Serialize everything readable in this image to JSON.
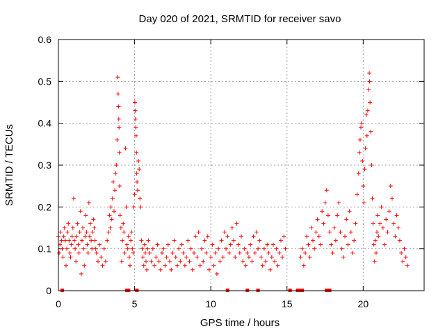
{
  "chart_data": {
    "type": "scatter",
    "title": "Day 020 of 2021, SRMTID for receiver savo",
    "xlabel": "GPS time / hours",
    "ylabel": "SRMTID / TECUs",
    "xlim": [
      0,
      24
    ],
    "ylim": [
      0,
      0.6
    ],
    "xticks": [
      0,
      5,
      10,
      15,
      20
    ],
    "xtick_labels": [
      "0",
      "5",
      "10",
      "15",
      "20"
    ],
    "yticks": [
      0,
      0.1,
      0.2,
      0.3,
      0.4,
      0.5,
      0.6
    ],
    "ytick_labels": [
      "0",
      "0.1",
      "0.2",
      "0.3",
      "0.4",
      "0.5",
      "0.6"
    ],
    "grid": true,
    "marker": "+",
    "color": "#ff0000",
    "zero_flags_x": [
      0.25,
      4.5,
      4.6,
      5.15,
      11.1,
      12.4,
      13.1,
      15.2,
      15.7,
      15.85,
      16.0,
      17.6,
      17.8
    ],
    "series": [
      {
        "name": "SRMTID",
        "points": [
          [
            0.0,
            0.13
          ],
          [
            0.05,
            0.09
          ],
          [
            0.1,
            0.11
          ],
          [
            0.15,
            0.14
          ],
          [
            0.2,
            0.12
          ],
          [
            0.25,
            0.1
          ],
          [
            0.3,
            0.08
          ],
          [
            0.35,
            0.13
          ],
          [
            0.4,
            0.15
          ],
          [
            0.45,
            0.12
          ],
          [
            0.5,
            0.06
          ],
          [
            0.55,
            0.1
          ],
          [
            0.6,
            0.14
          ],
          [
            0.65,
            0.16
          ],
          [
            0.7,
            0.12
          ],
          [
            0.75,
            0.09
          ],
          [
            0.8,
            0.08
          ],
          [
            0.85,
            0.11
          ],
          [
            0.9,
            0.13
          ],
          [
            0.95,
            0.15
          ],
          [
            1.0,
            0.22
          ],
          [
            1.05,
            0.12
          ],
          [
            1.1,
            0.1
          ],
          [
            1.15,
            0.07
          ],
          [
            1.2,
            0.13
          ],
          [
            1.25,
            0.16
          ],
          [
            1.3,
            0.11
          ],
          [
            1.35,
            0.09
          ],
          [
            1.4,
            0.14
          ],
          [
            1.45,
            0.19
          ],
          [
            1.5,
            0.04
          ],
          [
            1.55,
            0.12
          ],
          [
            1.6,
            0.15
          ],
          [
            1.65,
            0.1
          ],
          [
            1.7,
            0.06
          ],
          [
            1.75,
            0.13
          ],
          [
            1.8,
            0.18
          ],
          [
            1.85,
            0.14
          ],
          [
            1.9,
            0.11
          ],
          [
            1.95,
            0.09
          ],
          [
            2.0,
            0.21
          ],
          [
            2.05,
            0.13
          ],
          [
            2.1,
            0.16
          ],
          [
            2.15,
            0.12
          ],
          [
            2.2,
            0.1
          ],
          [
            2.25,
            0.14
          ],
          [
            2.3,
            0.17
          ],
          [
            2.35,
            0.15
          ],
          [
            2.4,
            0.12
          ],
          [
            2.45,
            0.1
          ],
          [
            2.5,
            0.09
          ],
          [
            2.6,
            0.07
          ],
          [
            2.7,
            0.11
          ],
          [
            2.8,
            0.08
          ],
          [
            2.9,
            0.06
          ],
          [
            3.0,
            0.1
          ],
          [
            3.1,
            0.07
          ],
          [
            3.2,
            0.12
          ],
          [
            3.3,
            0.14
          ],
          [
            3.35,
            0.18
          ],
          [
            3.4,
            0.15
          ],
          [
            3.45,
            0.2
          ],
          [
            3.5,
            0.17
          ],
          [
            3.55,
            0.22
          ],
          [
            3.6,
            0.26
          ],
          [
            3.65,
            0.19
          ],
          [
            3.7,
            0.24
          ],
          [
            3.75,
            0.28
          ],
          [
            3.8,
            0.3
          ],
          [
            3.85,
            0.36
          ],
          [
            3.9,
            0.51
          ],
          [
            3.92,
            0.47
          ],
          [
            3.94,
            0.44
          ],
          [
            3.96,
            0.41
          ],
          [
            3.98,
            0.39
          ],
          [
            4.0,
            0.33
          ],
          [
            4.02,
            0.25
          ],
          [
            4.05,
            0.18
          ],
          [
            4.1,
            0.15
          ],
          [
            4.15,
            0.07
          ],
          [
            4.2,
            0.12
          ],
          [
            4.25,
            0.16
          ],
          [
            4.3,
            0.14
          ],
          [
            4.35,
            0.09
          ],
          [
            4.4,
            0.34
          ],
          [
            4.45,
            0.2
          ],
          [
            4.5,
            0.11
          ],
          [
            4.55,
            0.1
          ],
          [
            4.6,
            0.13
          ],
          [
            4.65,
            0.08
          ],
          [
            4.7,
            0.06
          ],
          [
            4.75,
            0.12
          ],
          [
            4.8,
            0.14
          ],
          [
            4.85,
            0.1
          ],
          [
            4.9,
            0.09
          ],
          [
            4.95,
            0.2
          ],
          [
            5.0,
            0.23
          ],
          [
            5.02,
            0.45
          ],
          [
            5.04,
            0.43
          ],
          [
            5.06,
            0.41
          ],
          [
            5.08,
            0.39
          ],
          [
            5.1,
            0.37
          ],
          [
            5.12,
            0.33
          ],
          [
            5.14,
            0.28
          ],
          [
            5.16,
            0.26
          ],
          [
            5.2,
            0.24
          ],
          [
            5.25,
            0.31
          ],
          [
            5.3,
            0.29
          ],
          [
            5.35,
            0.22
          ],
          [
            5.4,
            0.2
          ],
          [
            5.45,
            0.12
          ],
          [
            5.5,
            0.1
          ],
          [
            5.55,
            0.08
          ],
          [
            5.6,
            0.06
          ],
          [
            5.65,
            0.11
          ],
          [
            5.7,
            0.09
          ],
          [
            5.75,
            0.07
          ],
          [
            5.8,
            0.05
          ],
          [
            5.85,
            0.1
          ],
          [
            5.9,
            0.12
          ],
          [
            6.0,
            0.09
          ],
          [
            6.1,
            0.07
          ],
          [
            6.2,
            0.1
          ],
          [
            6.3,
            0.06
          ],
          [
            6.4,
            0.08
          ],
          [
            6.5,
            0.11
          ],
          [
            6.6,
            0.07
          ],
          [
            6.7,
            0.05
          ],
          [
            6.8,
            0.09
          ],
          [
            6.9,
            0.1
          ],
          [
            7.0,
            0.06
          ],
          [
            7.1,
            0.08
          ],
          [
            7.2,
            0.11
          ],
          [
            7.3,
            0.07
          ],
          [
            7.4,
            0.05
          ],
          [
            7.5,
            0.09
          ],
          [
            7.6,
            0.12
          ],
          [
            7.7,
            0.08
          ],
          [
            7.8,
            0.06
          ],
          [
            7.9,
            0.1
          ],
          [
            8.0,
            0.07
          ],
          [
            8.1,
            0.11
          ],
          [
            8.2,
            0.09
          ],
          [
            8.3,
            0.06
          ],
          [
            8.4,
            0.08
          ],
          [
            8.5,
            0.12
          ],
          [
            8.6,
            0.07
          ],
          [
            8.7,
            0.1
          ],
          [
            8.8,
            0.05
          ],
          [
            8.9,
            0.09
          ],
          [
            9.0,
            0.13
          ],
          [
            9.1,
            0.08
          ],
          [
            9.2,
            0.14
          ],
          [
            9.3,
            0.06
          ],
          [
            9.4,
            0.1
          ],
          [
            9.5,
            0.07
          ],
          [
            9.6,
            0.12
          ],
          [
            9.7,
            0.09
          ],
          [
            9.8,
            0.13
          ],
          [
            9.9,
            0.05
          ],
          [
            10.0,
            0.08
          ],
          [
            10.1,
            0.11
          ],
          [
            10.2,
            0.06
          ],
          [
            10.3,
            0.09
          ],
          [
            10.4,
            0.04
          ],
          [
            10.5,
            0.1
          ],
          [
            10.6,
            0.07
          ],
          [
            10.7,
            0.12
          ],
          [
            10.8,
            0.08
          ],
          [
            10.9,
            0.14
          ],
          [
            11.0,
            0.1
          ],
          [
            11.1,
            0.13
          ],
          [
            11.2,
            0.09
          ],
          [
            11.3,
            0.11
          ],
          [
            11.4,
            0.15
          ],
          [
            11.5,
            0.12
          ],
          [
            11.6,
            0.08
          ],
          [
            11.7,
            0.16
          ],
          [
            11.8,
            0.11
          ],
          [
            11.9,
            0.09
          ],
          [
            12.0,
            0.13
          ],
          [
            12.1,
            0.07
          ],
          [
            12.2,
            0.1
          ],
          [
            12.3,
            0.06
          ],
          [
            12.4,
            0.09
          ],
          [
            12.5,
            0.08
          ],
          [
            12.6,
            0.11
          ],
          [
            12.7,
            0.07
          ],
          [
            12.8,
            0.13
          ],
          [
            12.9,
            0.09
          ],
          [
            13.0,
            0.14
          ],
          [
            13.1,
            0.1
          ],
          [
            13.2,
            0.12
          ],
          [
            13.3,
            0.08
          ],
          [
            13.4,
            0.06
          ],
          [
            13.5,
            0.1
          ],
          [
            13.6,
            0.07
          ],
          [
            13.7,
            0.11
          ],
          [
            13.8,
            0.09
          ],
          [
            13.9,
            0.05
          ],
          [
            14.0,
            0.08
          ],
          [
            14.1,
            0.11
          ],
          [
            14.2,
            0.07
          ],
          [
            14.3,
            0.1
          ],
          [
            14.4,
            0.06
          ],
          [
            14.5,
            0.09
          ],
          [
            14.6,
            0.12
          ],
          [
            14.7,
            0.08
          ],
          [
            14.8,
            0.13
          ],
          [
            14.9,
            0.1
          ],
          [
            15.9,
            0.08
          ],
          [
            16.0,
            0.1
          ],
          [
            16.1,
            0.06
          ],
          [
            16.2,
            0.09
          ],
          [
            16.3,
            0.13
          ],
          [
            16.4,
            0.11
          ],
          [
            16.5,
            0.08
          ],
          [
            16.6,
            0.15
          ],
          [
            16.7,
            0.12
          ],
          [
            16.8,
            0.1
          ],
          [
            16.9,
            0.14
          ],
          [
            17.0,
            0.17
          ],
          [
            17.1,
            0.13
          ],
          [
            17.2,
            0.11
          ],
          [
            17.3,
            0.19
          ],
          [
            17.4,
            0.16
          ],
          [
            17.5,
            0.21
          ],
          [
            17.6,
            0.24
          ],
          [
            17.7,
            0.18
          ],
          [
            17.8,
            0.14
          ],
          [
            17.9,
            0.11
          ],
          [
            18.0,
            0.09
          ],
          [
            18.1,
            0.15
          ],
          [
            18.2,
            0.12
          ],
          [
            18.3,
            0.18
          ],
          [
            18.4,
            0.21
          ],
          [
            18.5,
            0.14
          ],
          [
            18.6,
            0.1
          ],
          [
            18.7,
            0.08
          ],
          [
            18.8,
            0.13
          ],
          [
            18.9,
            0.17
          ],
          [
            19.0,
            0.11
          ],
          [
            19.1,
            0.19
          ],
          [
            19.2,
            0.14
          ],
          [
            19.3,
            0.09
          ],
          [
            19.4,
            0.12
          ],
          [
            19.5,
            0.16
          ],
          [
            19.6,
            0.23
          ],
          [
            19.7,
            0.28
          ],
          [
            19.75,
            0.33
          ],
          [
            19.8,
            0.36
          ],
          [
            19.85,
            0.39
          ],
          [
            19.9,
            0.4
          ],
          [
            19.95,
            0.31
          ],
          [
            20.0,
            0.25
          ],
          [
            20.05,
            0.21
          ],
          [
            20.1,
            0.29
          ],
          [
            20.15,
            0.34
          ],
          [
            20.2,
            0.42
          ],
          [
            20.25,
            0.37
          ],
          [
            20.3,
            0.43
          ],
          [
            20.35,
            0.48
          ],
          [
            20.4,
            0.52
          ],
          [
            20.42,
            0.5
          ],
          [
            20.45,
            0.45
          ],
          [
            20.5,
            0.38
          ],
          [
            20.55,
            0.3
          ],
          [
            20.6,
            0.22
          ],
          [
            20.65,
            0.16
          ],
          [
            20.7,
            0.11
          ],
          [
            20.75,
            0.07
          ],
          [
            20.8,
            0.12
          ],
          [
            20.85,
            0.09
          ],
          [
            20.9,
            0.14
          ],
          [
            20.95,
            0.18
          ],
          [
            21.0,
            0.13
          ],
          [
            21.1,
            0.16
          ],
          [
            21.2,
            0.2
          ],
          [
            21.3,
            0.15
          ],
          [
            21.4,
            0.11
          ],
          [
            21.5,
            0.17
          ],
          [
            21.6,
            0.14
          ],
          [
            21.7,
            0.19
          ],
          [
            21.8,
            0.25
          ],
          [
            21.9,
            0.22
          ],
          [
            22.0,
            0.16
          ],
          [
            22.1,
            0.13
          ],
          [
            22.2,
            0.18
          ],
          [
            22.3,
            0.15
          ],
          [
            22.4,
            0.12
          ],
          [
            22.5,
            0.09
          ],
          [
            22.6,
            0.07
          ],
          [
            22.7,
            0.1
          ],
          [
            22.8,
            0.08
          ],
          [
            22.9,
            0.06
          ]
        ]
      }
    ]
  }
}
